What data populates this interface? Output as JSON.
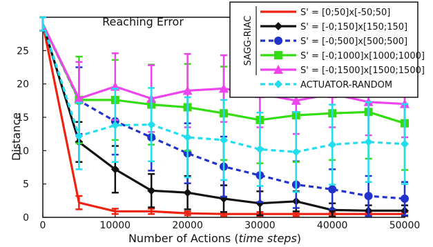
{
  "chart_data": {
    "type": "line",
    "title": "Reaching Error",
    "xlabel_main": "Number of Actions (",
    "xlabel_italic": "time steps",
    "xlabel_end": ")",
    "ylabel": "Distance",
    "xlim": [
      0,
      50000
    ],
    "ylim": [
      0,
      30
    ],
    "x_ticks": [
      0,
      10000,
      20000,
      30000,
      40000,
      50000
    ],
    "y_ticks": [
      0,
      5,
      10,
      15,
      20,
      25
    ],
    "legend_group_label": "SAGG-RIAC",
    "legend_position": "top-right",
    "x": [
      0,
      5000,
      10000,
      15000,
      20000,
      25000,
      30000,
      35000,
      40000,
      45000,
      50000
    ],
    "series": [
      {
        "name": "S' = [0;50]x[-50;50]",
        "color": "#ee2211",
        "dash": "solid",
        "marker": "none",
        "values": [
          29,
          2.2,
          0.9,
          0.9,
          0.6,
          0.5,
          0.5,
          0.5,
          0.5,
          0.5,
          0.5
        ],
        "err": [
          1.0,
          1.0,
          0.4,
          0.4,
          0.3,
          0.3,
          0.3,
          0.3,
          0.3,
          0.3,
          0.3
        ]
      },
      {
        "name": "S' = [-0;150]x[150;150]",
        "color": "#111111",
        "dash": "solid",
        "marker": "diamond",
        "values": [
          29,
          11.3,
          7.2,
          4.0,
          3.7,
          2.8,
          2.1,
          2.4,
          1.1,
          1.0,
          1.0
        ],
        "err": [
          1.0,
          3.0,
          3.5,
          2.5,
          2.5,
          2.0,
          1.8,
          1.5,
          1.0,
          0.8,
          0.8
        ]
      },
      {
        "name": "S' = [-0;500]x[500;500]",
        "color": "#2233cc",
        "dash": "dash",
        "marker": "circle",
        "values": [
          29,
          17.5,
          14.4,
          12.0,
          9.6,
          7.6,
          6.3,
          4.9,
          4.2,
          3.2,
          2.8
        ],
        "err": [
          1.0,
          5.0,
          5.0,
          5.0,
          4.5,
          4.5,
          4.0,
          3.5,
          3.0,
          3.0,
          2.5
        ]
      },
      {
        "name": "S' = [-0;1000]x[1000;1000]",
        "color": "#33dd11",
        "dash": "solid",
        "marker": "square",
        "values": [
          29,
          17.6,
          17.6,
          16.9,
          16.5,
          15.6,
          14.6,
          15.3,
          15.6,
          15.8,
          14.1
        ],
        "err": [
          1.0,
          6.5,
          6.0,
          6.0,
          6.5,
          7.0,
          6.5,
          7.0,
          7.0,
          7.0,
          7.0
        ]
      },
      {
        "name": "S' = [-0;1500]x[1500;1500]",
        "color": "#ee44ee",
        "dash": "solid",
        "marker": "triangle",
        "values": [
          29,
          17.8,
          19.6,
          17.8,
          19.0,
          19.3,
          18.5,
          17.5,
          18.5,
          17.3,
          17.0
        ],
        "err": [
          1.0,
          5.5,
          5.0,
          5.0,
          5.5,
          5.0,
          5.0,
          5.0,
          5.0,
          5.0,
          5.0
        ]
      },
      {
        "name": "ACTUATOR-RANDOM",
        "color": "#22ddee",
        "dash": "dash",
        "marker": "diamond",
        "values": [
          29,
          12.2,
          13.8,
          13.9,
          12.0,
          11.6,
          10.2,
          9.8,
          10.9,
          11.3,
          11.0
        ],
        "err": [
          1.0,
          5.0,
          5.5,
          5.5,
          6.0,
          6.0,
          5.5,
          6.0,
          6.0,
          6.0,
          6.0
        ]
      }
    ]
  }
}
